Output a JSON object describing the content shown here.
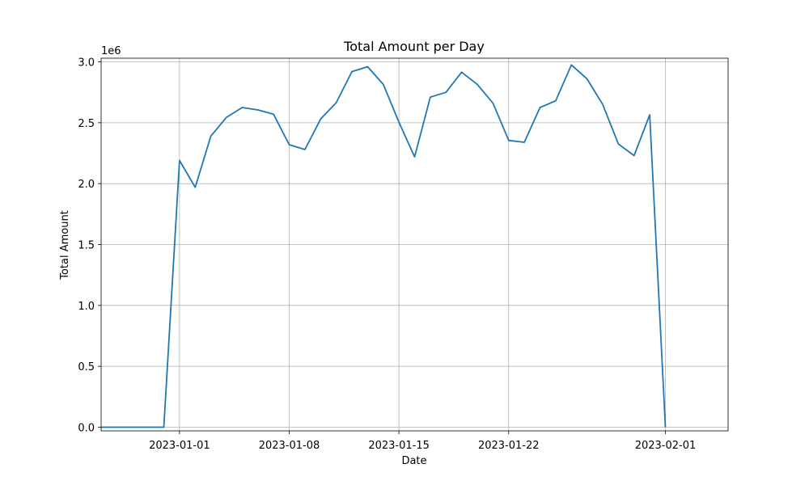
{
  "chart_data": {
    "type": "line",
    "title": "Total Amount per Day",
    "xlabel": "Date",
    "ylabel": "Total Amount",
    "y_scale_label": "1e6",
    "grid": true,
    "xlim": [
      "2022-12-27",
      "2023-02-05"
    ],
    "ylim": [
      -30000,
      3030000
    ],
    "x_ticks": [
      "2023-01-01",
      "2023-01-08",
      "2023-01-15",
      "2023-01-22",
      "2023-02-01"
    ],
    "y_ticks": [
      0,
      500000,
      1000000,
      1500000,
      2000000,
      2500000,
      3000000
    ],
    "y_tick_labels": [
      "0.0",
      "0.5",
      "1.0",
      "1.5",
      "2.0",
      "2.5",
      "3.0"
    ],
    "line_color": "#1f77b4",
    "series": [
      {
        "x": [
          "2022-12-27",
          "2022-12-28",
          "2022-12-29",
          "2022-12-30",
          "2022-12-31",
          "2023-01-01",
          "2023-01-02",
          "2023-01-03",
          "2023-01-04",
          "2023-01-05",
          "2023-01-06",
          "2023-01-07",
          "2023-01-08",
          "2023-01-09",
          "2023-01-10",
          "2023-01-11",
          "2023-01-12",
          "2023-01-13",
          "2023-01-14",
          "2023-01-15",
          "2023-01-16",
          "2023-01-17",
          "2023-01-18",
          "2023-01-19",
          "2023-01-20",
          "2023-01-21",
          "2023-01-22",
          "2023-01-23",
          "2023-01-24",
          "2023-01-25",
          "2023-01-26",
          "2023-01-27",
          "2023-01-28",
          "2023-01-29",
          "2023-01-30",
          "2023-01-31",
          "2023-02-01"
        ],
        "values": [
          0,
          0,
          0,
          0,
          0,
          2190000,
          1970000,
          2390000,
          2545000,
          2625000,
          2605000,
          2570000,
          2320000,
          2280000,
          2530000,
          2665000,
          2920000,
          2960000,
          2815000,
          2505000,
          2220000,
          2710000,
          2750000,
          2915000,
          2815000,
          2660000,
          2355000,
          2340000,
          2625000,
          2680000,
          2975000,
          2860000,
          2650000,
          2325000,
          2230000,
          2565000,
          0
        ]
      }
    ]
  }
}
